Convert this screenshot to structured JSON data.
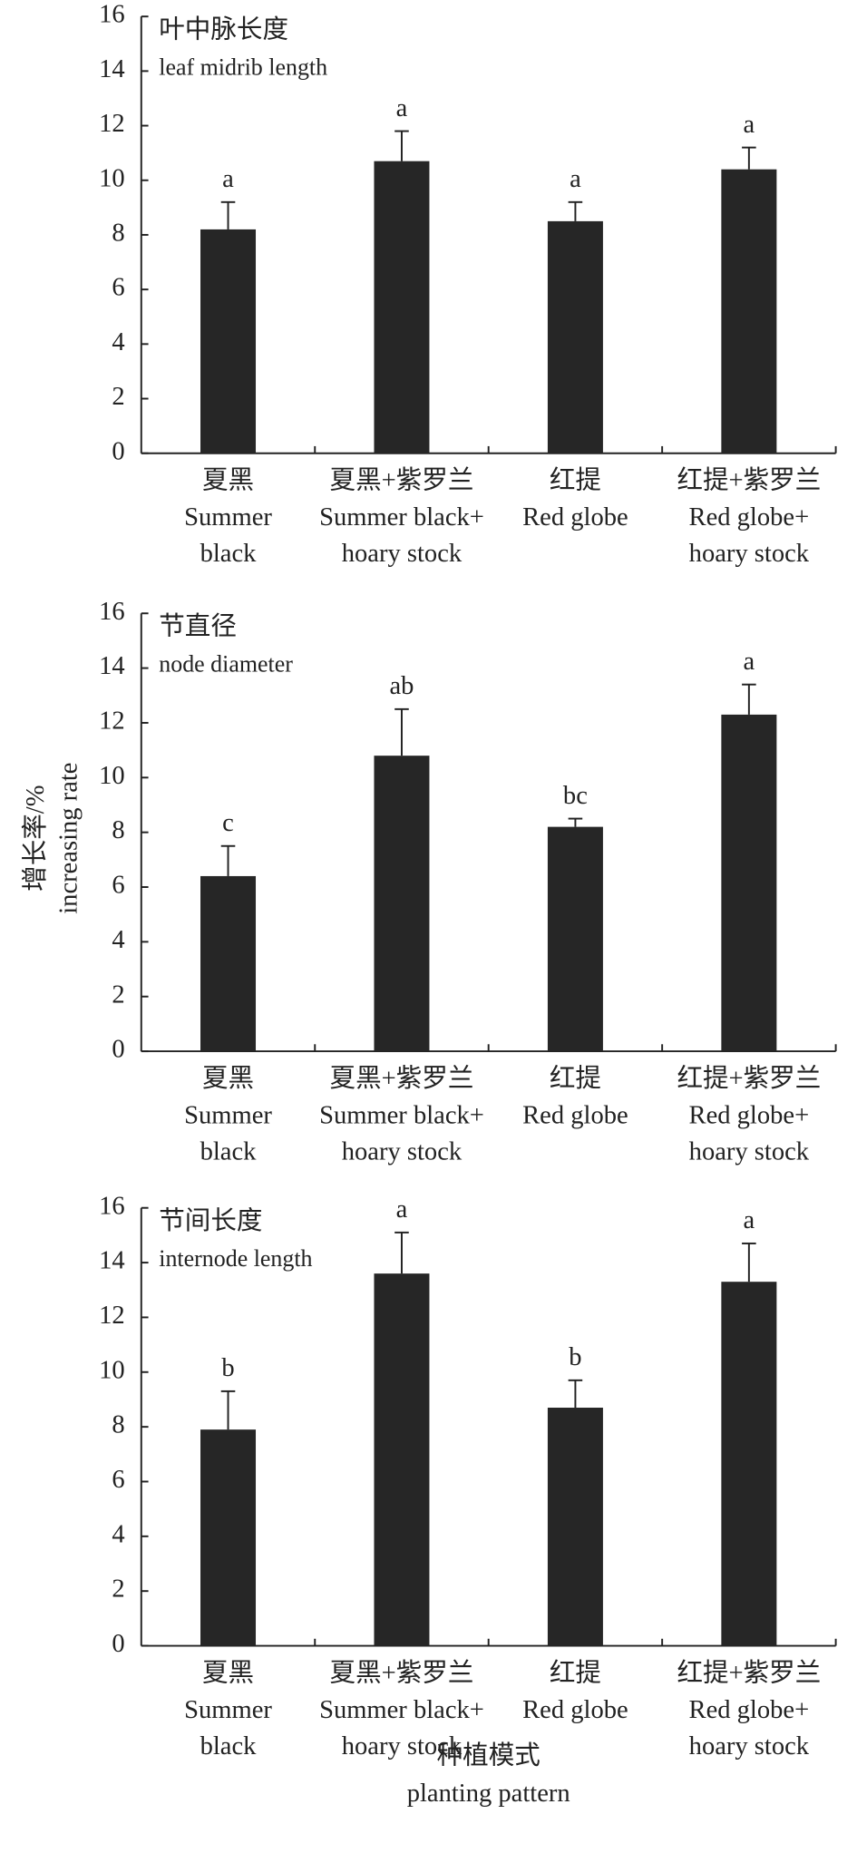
{
  "chart_data": [
    {
      "type": "bar",
      "title": "叶中脉长度",
      "subtitle": "leaf midrib length",
      "categories": [
        [
          "夏黑",
          "Summer",
          "black"
        ],
        [
          "夏黑+紫罗兰",
          "Summer black+",
          "hoary stock"
        ],
        [
          "红提",
          "Red globe"
        ],
        [
          "红提+紫罗兰",
          "Red globe+",
          "hoary stock"
        ]
      ],
      "values": [
        8.2,
        10.7,
        8.5,
        10.4
      ],
      "errors": [
        1.0,
        1.1,
        0.7,
        0.8
      ],
      "annotations": [
        "a",
        "a",
        "a",
        "a"
      ],
      "color": "#262626",
      "ylim": [
        0,
        16
      ],
      "yticks": [
        0,
        2,
        4,
        6,
        8,
        10,
        12,
        14,
        16
      ]
    },
    {
      "type": "bar",
      "title": "节直径",
      "subtitle": "node diameter",
      "categories": [
        [
          "夏黑",
          "Summer",
          "black"
        ],
        [
          "夏黑+紫罗兰",
          "Summer black+",
          "hoary stock"
        ],
        [
          "红提",
          "Red globe"
        ],
        [
          "红提+紫罗兰",
          "Red globe+",
          "hoary stock"
        ]
      ],
      "values": [
        6.4,
        10.8,
        8.2,
        12.3
      ],
      "errors": [
        1.1,
        1.7,
        0.3,
        1.1
      ],
      "annotations": [
        "c",
        "ab",
        "bc",
        "a"
      ],
      "color": "#262626",
      "ylim": [
        0,
        16
      ],
      "yticks": [
        0,
        2,
        4,
        6,
        8,
        10,
        12,
        14,
        16
      ]
    },
    {
      "type": "bar",
      "title": "节间长度",
      "subtitle": "internode length",
      "categories": [
        [
          "夏黑",
          "Summer",
          "black"
        ],
        [
          "夏黑+紫罗兰",
          "Summer black+",
          "hoary stock"
        ],
        [
          "红提",
          "Red globe"
        ],
        [
          "红提+紫罗兰",
          "Red globe+",
          "hoary stock"
        ]
      ],
      "values": [
        7.9,
        13.6,
        8.7,
        13.3
      ],
      "errors": [
        1.4,
        1.5,
        1.0,
        1.4
      ],
      "annotations": [
        "b",
        "a",
        "b",
        "a"
      ],
      "color": "#262626",
      "ylim": [
        0,
        16
      ],
      "yticks": [
        0,
        2,
        4,
        6,
        8,
        10,
        12,
        14,
        16
      ]
    }
  ],
  "y_label": [
    "增长率/%",
    "increasing rate"
  ],
  "x_label": [
    "种植模式",
    "planting pattern"
  ]
}
